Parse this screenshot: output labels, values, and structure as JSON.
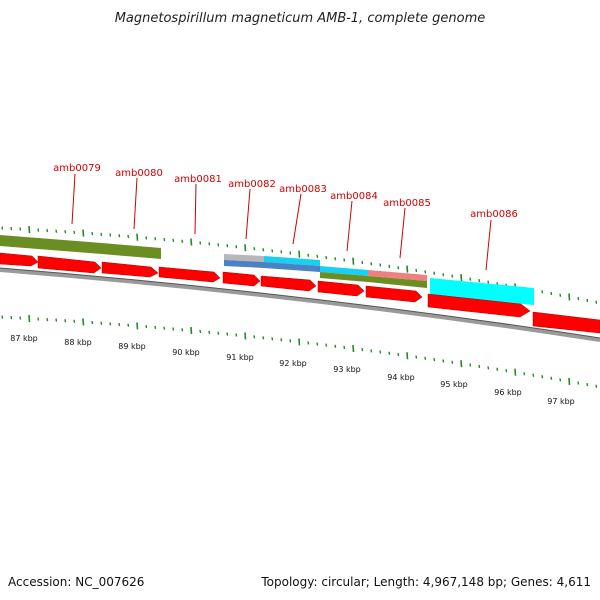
{
  "title": "Magnetospirillum magneticum AMB-1, complete genome",
  "footer": {
    "accession": "Accession: NC_007626",
    "topology": "Topology: circular; Length: 4,967,148 bp; Genes: 4,611"
  },
  "colors": {
    "forward_cds": "#ff0000",
    "olive_feature": "#6b8e23",
    "grey_feature": "#b7b7b7",
    "blue_feature": "#4a82c4",
    "cyan_feature": "#1ad0f0",
    "salmon_feature": "#f08080",
    "bright_cyan_feature": "#00ffff",
    "backbone": "#777777",
    "tick": "#228b22",
    "label": "#d00000"
  },
  "genes": [
    {
      "name": "amb0079"
    },
    {
      "name": "amb0080"
    },
    {
      "name": "amb0081"
    },
    {
      "name": "amb0082"
    },
    {
      "name": "amb0083"
    },
    {
      "name": "amb0084"
    },
    {
      "name": "amb0085"
    },
    {
      "name": "amb0086"
    }
  ],
  "kbp_ticks": [
    "87 kbp",
    "88 kbp",
    "89 kbp",
    "90 kbp",
    "91 kbp",
    "92 kbp",
    "93 kbp",
    "94 kbp",
    "95 kbp",
    "96 kbp",
    "97 kbp"
  ]
}
